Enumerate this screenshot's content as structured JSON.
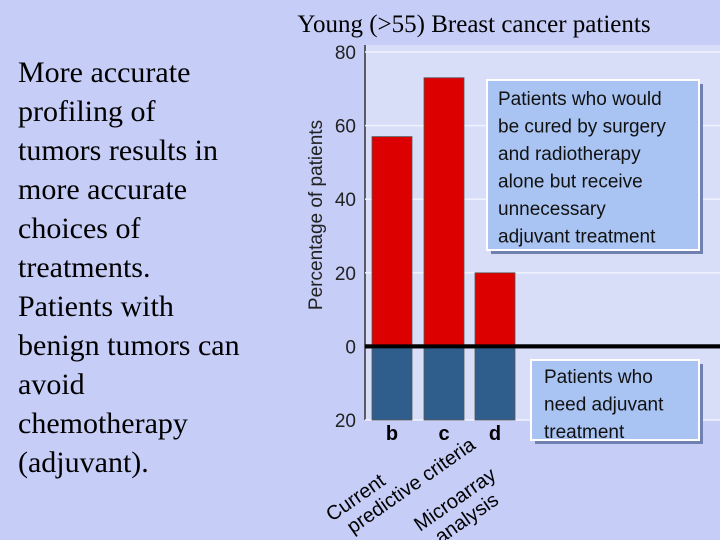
{
  "slide": {
    "title": "Young (>55) Breast cancer patients",
    "body": [
      "More accurate",
      "profiling of",
      "tumors results in",
      "more accurate",
      "choices of",
      "treatments.",
      "Patients with",
      "benign tumors can",
      "avoid",
      "chemotherapy",
      "(adjuvant)."
    ]
  },
  "chart_data": {
    "type": "bar",
    "y_label": "Percentage of patients",
    "categories": [
      "b",
      "c",
      "d"
    ],
    "series": [
      {
        "color": "#dd0000",
        "values": [
          57,
          73,
          20
        ]
      },
      {
        "color": "#2f5d8c",
        "values": [
          -20,
          -20,
          -20
        ]
      }
    ],
    "ylim": [
      -20,
      80
    ],
    "yticks": [
      {
        "value": -20,
        "label": "20"
      },
      0,
      20,
      40,
      60,
      80
    ],
    "grid": true,
    "group_labels": [
      [
        "Current",
        "predictive criteria"
      ],
      [
        "Microarray",
        "analysis"
      ]
    ],
    "annotations": [
      [
        "Patients who would",
        "be cured by surgery",
        "and radiotherapy",
        "alone but receive",
        "unnecessary",
        "adjuvant treatment"
      ],
      [
        "Patients who",
        "need adjuvant",
        "treatment"
      ]
    ]
  }
}
